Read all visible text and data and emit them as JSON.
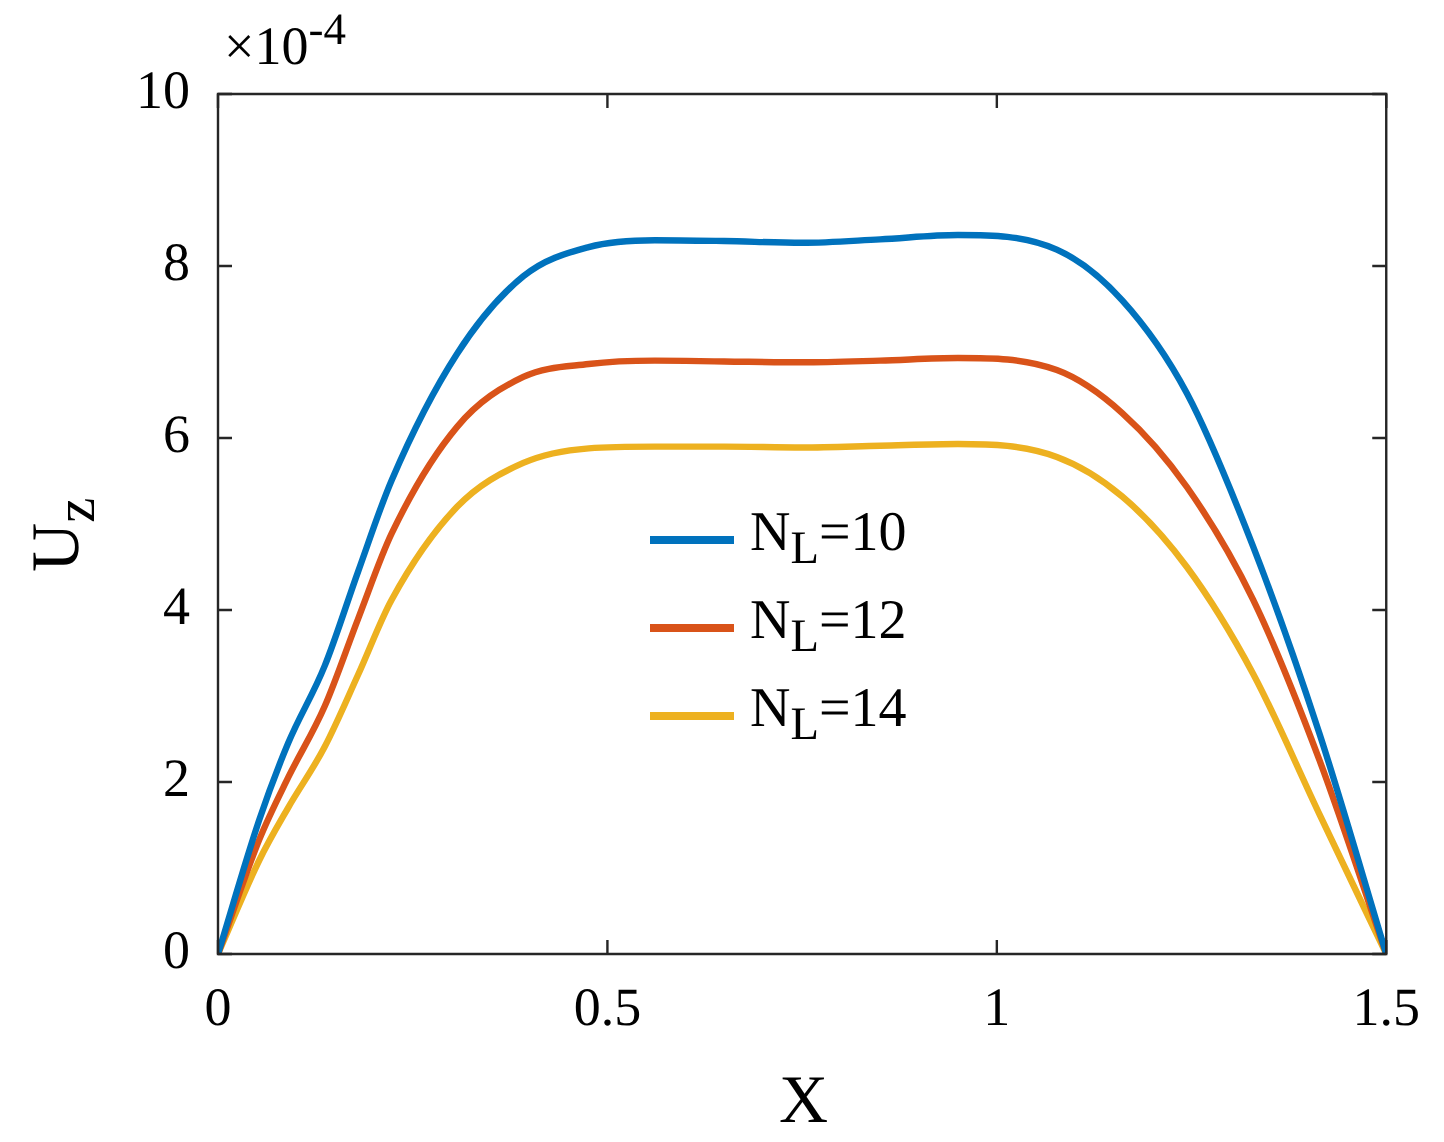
{
  "chart_data": {
    "type": "line",
    "xlabel": "X",
    "ylabel": "U$_{z}$",
    "annotations": [
      "×10$^{-4}$"
    ],
    "xlim": [
      0,
      1.5
    ],
    "xticks": [
      0,
      0.5,
      1,
      1.5
    ],
    "ylim": [
      0,
      10
    ],
    "yticks": [
      0,
      2,
      4,
      6,
      8,
      10
    ],
    "grid": false,
    "legend": "center",
    "marker": "none",
    "line_style": "solid",
    "x": [
      0,
      0.053,
      0.09,
      0.137,
      0.18,
      0.223,
      0.307,
      0.392,
      0.476,
      0.561,
      0.65,
      0.75,
      0.85,
      0.95,
      1.077,
      1.161,
      1.244,
      1.329,
      1.414,
      1.5
    ],
    "series": [
      {
        "name": "N$_{L}$=10",
        "color": "#0072bd",
        "values": [
          0,
          1.56,
          2.45,
          3.35,
          4.45,
          5.51,
          6.98,
          7.88,
          8.22,
          8.3,
          8.29,
          8.27,
          8.31,
          8.36,
          8.19,
          7.6,
          6.52,
          4.74,
          2.57,
          0
        ]
      },
      {
        "name": "N$_{L}$=12",
        "color": "#d95319",
        "values": [
          0,
          1.33,
          2.05,
          2.88,
          3.9,
          4.89,
          6.13,
          6.71,
          6.86,
          6.9,
          6.89,
          6.88,
          6.9,
          6.93,
          6.79,
          6.29,
          5.43,
          4.12,
          2.26,
          0
        ]
      },
      {
        "name": "N$_{L}$=14",
        "color": "#edb120",
        "values": [
          0,
          1.09,
          1.7,
          2.41,
          3.25,
          4.12,
          5.2,
          5.71,
          5.88,
          5.9,
          5.9,
          5.89,
          5.91,
          5.93,
          5.78,
          5.32,
          4.5,
          3.26,
          1.63,
          0
        ]
      }
    ]
  }
}
